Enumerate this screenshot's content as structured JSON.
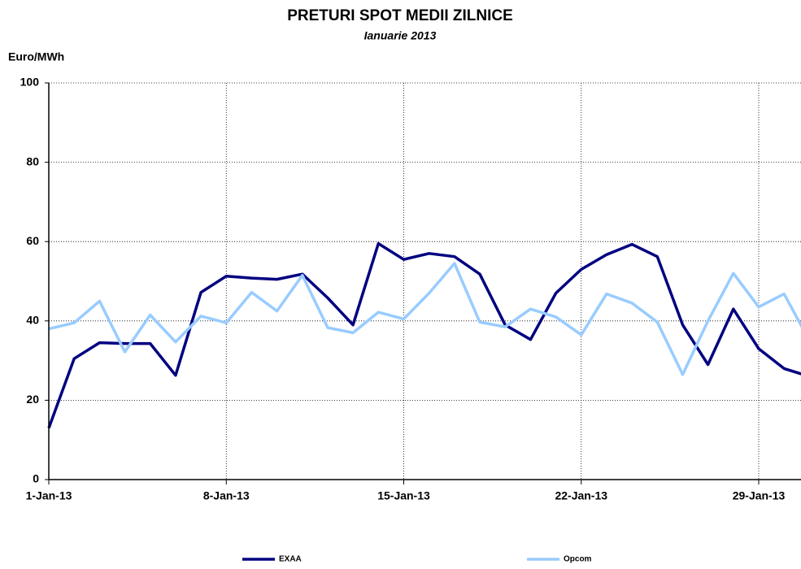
{
  "chart_data": {
    "type": "line",
    "title": "PRETURI SPOT MEDII ZILNICE",
    "subtitle": "Ianuarie 2013",
    "y_label": "Euro/MWh",
    "categories": [
      "1-Jan-13",
      null,
      null,
      null,
      null,
      null,
      null,
      "8-Jan-13",
      null,
      null,
      null,
      null,
      null,
      null,
      "15-Jan-13",
      null,
      null,
      null,
      null,
      null,
      null,
      "22-Jan-13",
      null,
      null,
      null,
      null,
      null,
      null,
      "29-Jan-13",
      null,
      null
    ],
    "series": [
      {
        "name": "EXAA",
        "color": "#000080",
        "values": [
          13,
          30.5,
          34.5,
          34.3,
          34.3,
          26.3,
          47.2,
          51.3,
          50.8,
          50.5,
          51.8,
          45.8,
          39,
          59.5,
          55.5,
          57,
          56.2,
          51.8,
          39,
          35.3,
          47,
          53,
          56.7,
          59.3,
          56.2,
          39,
          29,
          43,
          33,
          28,
          26
        ]
      },
      {
        "name": "Opcom",
        "color": "#99ccff",
        "values": [
          38,
          39.5,
          45,
          32.2,
          41.5,
          34.7,
          41.2,
          39.5,
          47.2,
          42.5,
          51.5,
          38.3,
          37,
          42.2,
          40.5,
          47,
          54.5,
          39.7,
          38.5,
          43,
          41,
          36.5,
          46.8,
          44.5,
          39.7,
          26.5,
          40,
          52,
          43.5,
          46.8,
          35
        ]
      }
    ],
    "ylim": [
      0,
      100
    ],
    "yticks": [
      0,
      20,
      40,
      60,
      80,
      100
    ],
    "grid": true,
    "legend": "bottom"
  }
}
